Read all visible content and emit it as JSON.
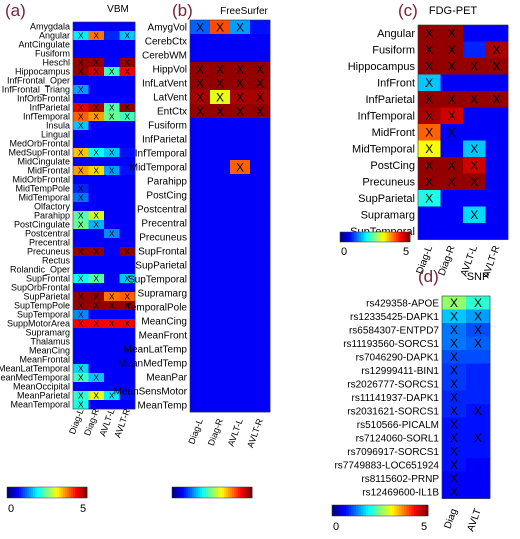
{
  "chart_data": [
    {
      "type": "heatmap",
      "panel_label": "(a)",
      "title": "VBM",
      "columns": [
        "Diag-L",
        "Diag-R",
        "AVLT-L",
        "AVLT-R"
      ],
      "rows": [
        "Amygdala",
        "Angular",
        "AntCingulate",
        "Fusiform",
        "Heschl",
        "Hippocampus",
        "InfFrontal_Oper",
        "InfFrontal_Triang",
        "InfOrbFrontal",
        "InfParietal",
        "InfTemporal",
        "Insula",
        "Lingual",
        "MedOrbFrontal",
        "MedSupFrontal",
        "MidCingulate",
        "MidFrontal",
        "MidOrbFrontal",
        "MidTempPole",
        "MidTemporal",
        "Olfactory",
        "Parahipp",
        "PostCingulate",
        "Postcentral",
        "Precentral",
        "Precuneus",
        "Rectus",
        "Rolandic_Oper",
        "SupFrontal",
        "SupOrbFrontal",
        "SupParietal",
        "SupTempPole",
        "SupTemporal",
        "SuppMotorArea",
        "Supramarg",
        "Thalamus",
        "MeanCing",
        "MeanFrontal",
        "MeanLatTemporal",
        "MeanMedTemporal",
        "MeanOccipital",
        "MeanParietal",
        "MeanTemporal"
      ],
      "values": [
        [
          0.6,
          0.6,
          0.6,
          0.6
        ],
        [
          1.8,
          3.8,
          0.8,
          1.6
        ],
        [
          0.6,
          0.6,
          0.6,
          0.6
        ],
        [
          0.6,
          0.6,
          0.6,
          0.6
        ],
        [
          4.9,
          4.9,
          0.6,
          4.9
        ],
        [
          4.9,
          4.6,
          2.2,
          4.4
        ],
        [
          0.6,
          0.6,
          0.6,
          0.6
        ],
        [
          1.4,
          0.6,
          0.6,
          0.6
        ],
        [
          0.6,
          0.6,
          0.6,
          0.6
        ],
        [
          4.5,
          4.8,
          2.3,
          4.9
        ],
        [
          3.9,
          3.6,
          2.4,
          2.2
        ],
        [
          1.6,
          0.6,
          0.6,
          0.6
        ],
        [
          0.6,
          0.6,
          0.6,
          0.6
        ],
        [
          0.6,
          0.6,
          0.6,
          0.6
        ],
        [
          3.4,
          1.9,
          1.6,
          0.7
        ],
        [
          0.6,
          0.6,
          0.6,
          0.6
        ],
        [
          3.6,
          3.3,
          1.4,
          0.7
        ],
        [
          0.6,
          0.6,
          0.6,
          0.6
        ],
        [
          0.8,
          0.6,
          0.6,
          0.6
        ],
        [
          1.2,
          0.6,
          0.6,
          0.6
        ],
        [
          0.6,
          0.6,
          0.6,
          0.6
        ],
        [
          2.3,
          2.9,
          0.6,
          0.6
        ],
        [
          2.4,
          1.5,
          0.6,
          0.6
        ],
        [
          0.6,
          0.6,
          1.3,
          0.6
        ],
        [
          0.6,
          0.6,
          0.6,
          0.6
        ],
        [
          4.9,
          4.9,
          0.6,
          4.9
        ],
        [
          0.6,
          0.6,
          0.6,
          0.6
        ],
        [
          0.6,
          0.6,
          0.6,
          0.6
        ],
        [
          1.9,
          2.3,
          0.6,
          1.6
        ],
        [
          0.6,
          0.6,
          0.6,
          0.6
        ],
        [
          4.9,
          4.9,
          3.8,
          3.9
        ],
        [
          4.9,
          4.9,
          4.9,
          4.9
        ],
        [
          1.3,
          0.6,
          0.6,
          0.6
        ],
        [
          4.4,
          4.4,
          4.4,
          4.4
        ],
        [
          0.6,
          0.6,
          0.6,
          0.6
        ],
        [
          0.6,
          0.6,
          0.6,
          0.6
        ],
        [
          0.6,
          0.6,
          0.6,
          0.6
        ],
        [
          0.6,
          0.6,
          0.6,
          0.6
        ],
        [
          1.7,
          0.6,
          0.6,
          0.6
        ],
        [
          2.2,
          1.6,
          0.6,
          0.6
        ],
        [
          0.6,
          0.6,
          0.6,
          0.6
        ],
        [
          2.1,
          3.0,
          1.8,
          0.7
        ],
        [
          2.0,
          0.6,
          0.6,
          0.6
        ]
      ],
      "marks": [
        [
          0,
          0,
          0,
          0
        ],
        [
          1,
          1,
          0,
          1
        ],
        [
          0,
          0,
          0,
          0
        ],
        [
          0,
          0,
          0,
          0
        ],
        [
          1,
          1,
          0,
          1
        ],
        [
          1,
          1,
          1,
          1
        ],
        [
          0,
          0,
          0,
          0
        ],
        [
          1,
          0,
          0,
          0
        ],
        [
          0,
          0,
          0,
          0
        ],
        [
          1,
          1,
          1,
          1
        ],
        [
          1,
          1,
          1,
          1
        ],
        [
          1,
          0,
          0,
          0
        ],
        [
          0,
          0,
          0,
          0
        ],
        [
          0,
          0,
          0,
          0
        ],
        [
          1,
          1,
          1,
          0
        ],
        [
          0,
          0,
          0,
          0
        ],
        [
          1,
          1,
          1,
          0
        ],
        [
          0,
          0,
          0,
          0
        ],
        [
          1,
          0,
          0,
          0
        ],
        [
          1,
          0,
          0,
          0
        ],
        [
          0,
          0,
          0,
          0
        ],
        [
          1,
          1,
          0,
          0
        ],
        [
          1,
          1,
          0,
          0
        ],
        [
          0,
          0,
          1,
          0
        ],
        [
          0,
          0,
          0,
          0
        ],
        [
          1,
          1,
          0,
          1
        ],
        [
          0,
          0,
          0,
          0
        ],
        [
          0,
          0,
          0,
          0
        ],
        [
          1,
          1,
          0,
          1
        ],
        [
          0,
          0,
          0,
          0
        ],
        [
          1,
          1,
          1,
          1
        ],
        [
          1,
          1,
          1,
          1
        ],
        [
          1,
          0,
          0,
          0
        ],
        [
          1,
          1,
          1,
          1
        ],
        [
          0,
          0,
          0,
          0
        ],
        [
          0,
          0,
          0,
          0
        ],
        [
          0,
          0,
          0,
          0
        ],
        [
          0,
          0,
          0,
          0
        ],
        [
          1,
          0,
          0,
          0
        ],
        [
          1,
          1,
          0,
          0
        ],
        [
          0,
          0,
          0,
          0
        ],
        [
          1,
          1,
          1,
          0
        ],
        [
          1,
          0,
          0,
          0
        ]
      ],
      "colorbar": {
        "colormap": "jet",
        "range": [
          0,
          5
        ],
        "tick_labels": [
          "0",
          "5"
        ]
      }
    },
    {
      "type": "heatmap",
      "panel_label": "(b)",
      "title": "FreeSurfer",
      "columns": [
        "Diag-L",
        "Diag-R",
        "AVLT-L",
        "AVLT-R"
      ],
      "rows": [
        "AmygVol",
        "CerebCtx",
        "CerebWM",
        "HippVol",
        "InfLatVent",
        "LatVent",
        "EntCtx",
        "Fusiform",
        "InfParietal",
        "InfTemporal",
        "MidTemporal",
        "Parahipp",
        "PostCing",
        "Postcentral",
        "Precentral",
        "Precuneus",
        "SupFrontal",
        "SupParietal",
        "SupTemporal",
        "Supramarg",
        "TemporalPole",
        "MeanCing",
        "MeanFront",
        "MeanLatTemp",
        "MeanMedTemp",
        "MeanPar",
        "MeanSensMotor",
        "MeanTemp"
      ],
      "values": [
        [
          1.1,
          4.0,
          1.4,
          0.7
        ],
        [
          0.6,
          0.6,
          0.6,
          0.6
        ],
        [
          0.6,
          0.6,
          0.6,
          0.6
        ],
        [
          4.9,
          4.9,
          4.9,
          4.9
        ],
        [
          4.9,
          4.9,
          4.9,
          4.9
        ],
        [
          4.8,
          3.0,
          4.8,
          4.8
        ],
        [
          4.9,
          4.9,
          4.9,
          4.9
        ],
        [
          0.6,
          0.6,
          0.6,
          0.6
        ],
        [
          0.6,
          0.6,
          0.6,
          0.6
        ],
        [
          0.6,
          0.6,
          0.6,
          0.6
        ],
        [
          0.6,
          0.6,
          3.9,
          0.6
        ],
        [
          0.6,
          0.6,
          0.6,
          0.6
        ],
        [
          0.6,
          0.6,
          0.6,
          0.6
        ],
        [
          0.6,
          0.6,
          0.6,
          0.6
        ],
        [
          0.6,
          0.6,
          0.6,
          0.6
        ],
        [
          0.6,
          0.6,
          0.6,
          0.6
        ],
        [
          0.6,
          0.6,
          0.6,
          0.6
        ],
        [
          0.6,
          0.6,
          0.6,
          0.6
        ],
        [
          0.6,
          0.6,
          0.6,
          0.6
        ],
        [
          0.6,
          0.6,
          0.6,
          0.6
        ],
        [
          0.6,
          0.6,
          0.6,
          0.6
        ],
        [
          0.6,
          0.6,
          0.6,
          0.6
        ],
        [
          0.6,
          0.6,
          0.6,
          0.6
        ],
        [
          0.6,
          0.6,
          0.6,
          0.6
        ],
        [
          0.6,
          0.6,
          0.6,
          0.6
        ],
        [
          0.6,
          0.6,
          0.6,
          0.6
        ],
        [
          0.6,
          0.6,
          0.6,
          0.6
        ],
        [
          0.6,
          0.6,
          0.6,
          0.6
        ]
      ],
      "marks": [
        [
          1,
          1,
          1,
          0
        ],
        [
          0,
          0,
          0,
          0
        ],
        [
          0,
          0,
          0,
          0
        ],
        [
          1,
          1,
          1,
          1
        ],
        [
          1,
          1,
          1,
          1
        ],
        [
          1,
          1,
          1,
          1
        ],
        [
          1,
          1,
          1,
          1
        ],
        [
          0,
          0,
          0,
          0
        ],
        [
          0,
          0,
          0,
          0
        ],
        [
          0,
          0,
          0,
          0
        ],
        [
          0,
          0,
          1,
          0
        ],
        [
          0,
          0,
          0,
          0
        ],
        [
          0,
          0,
          0,
          0
        ],
        [
          0,
          0,
          0,
          0
        ],
        [
          0,
          0,
          0,
          0
        ],
        [
          0,
          0,
          0,
          0
        ],
        [
          0,
          0,
          0,
          0
        ],
        [
          0,
          0,
          0,
          0
        ],
        [
          0,
          0,
          0,
          0
        ],
        [
          0,
          0,
          0,
          0
        ],
        [
          0,
          0,
          0,
          0
        ],
        [
          0,
          0,
          0,
          0
        ],
        [
          0,
          0,
          0,
          0
        ],
        [
          0,
          0,
          0,
          0
        ],
        [
          0,
          0,
          0,
          0
        ],
        [
          0,
          0,
          0,
          0
        ],
        [
          0,
          0,
          0,
          0
        ],
        [
          0,
          0,
          0,
          0
        ]
      ],
      "colorbar": {
        "colormap": "jet",
        "range": [
          0,
          5
        ],
        "tick_labels": []
      }
    },
    {
      "type": "heatmap",
      "panel_label": "(c)",
      "title": "FDG-PET",
      "columns": [
        "Diag-L",
        "Diag-R",
        "AVLT-L",
        "AVLT-R"
      ],
      "rows": [
        "Angular",
        "Fusiform",
        "Hippocampus",
        "InfFront",
        "InfParietal",
        "InfTemporal",
        "MidFront",
        "MidTemporal",
        "PostCing",
        "Precuneus",
        "SupParietal",
        "Supramarg",
        "SupTemporal"
      ],
      "values": [
        [
          4.9,
          4.9,
          0.6,
          0.6
        ],
        [
          4.9,
          4.9,
          0.8,
          4.8
        ],
        [
          4.9,
          4.9,
          4.9,
          4.9
        ],
        [
          1.6,
          0.6,
          0.6,
          0.6
        ],
        [
          4.9,
          4.9,
          4.9,
          4.9
        ],
        [
          4.8,
          4.6,
          0.6,
          0.6
        ],
        [
          3.9,
          0.6,
          0.6,
          0.6
        ],
        [
          3.1,
          0.6,
          1.6,
          0.6
        ],
        [
          4.9,
          4.9,
          4.6,
          0.6
        ],
        [
          4.9,
          4.9,
          4.9,
          0.6
        ],
        [
          2.0,
          0.6,
          0.6,
          0.6
        ],
        [
          0.6,
          0.6,
          1.7,
          0.6
        ],
        [
          0.6,
          0.6,
          0.6,
          0.6
        ]
      ],
      "marks": [
        [
          1,
          1,
          0,
          0
        ],
        [
          1,
          1,
          0,
          1
        ],
        [
          1,
          1,
          1,
          1
        ],
        [
          1,
          0,
          0,
          0
        ],
        [
          1,
          1,
          1,
          1
        ],
        [
          1,
          1,
          0,
          0
        ],
        [
          1,
          1,
          0,
          0
        ],
        [
          1,
          0,
          1,
          0
        ],
        [
          1,
          1,
          1,
          0
        ],
        [
          1,
          1,
          1,
          0
        ],
        [
          1,
          0,
          0,
          0
        ],
        [
          0,
          0,
          1,
          0
        ],
        [
          0,
          0,
          0,
          0
        ]
      ],
      "colorbar": {
        "colormap": "jet",
        "range": [
          0,
          5
        ],
        "tick_labels": [
          "0",
          "5"
        ]
      }
    },
    {
      "type": "heatmap",
      "panel_label": "(d)",
      "title": "SNP",
      "columns": [
        "Diag",
        "AVLT"
      ],
      "rows": [
        "rs429358-APOE",
        "rs12335425-DAPK1",
        "rs6584307-ENTPD7",
        "rs11193560-SORCS1",
        "rs7046290-DAPK1",
        "rs12999411-BIN1",
        "rs2026777-SORCS1",
        "rs11141937-DAPK1",
        "rs2031621-SORCS1",
        "rs510566-PICALM",
        "rs7124060-SORL1",
        "rs7096917-SORCS1",
        "rs7749883-LOC651924",
        "rs8115602-PRNP",
        "rs12469600-IL1B"
      ],
      "values": [
        [
          2.6,
          2.1
        ],
        [
          1.6,
          1.4
        ],
        [
          1.2,
          1.0
        ],
        [
          1.2,
          1.1
        ],
        [
          1.0,
          1.0
        ],
        [
          0.9,
          0.8
        ],
        [
          0.9,
          0.8
        ],
        [
          0.8,
          0.8
        ],
        [
          0.8,
          0.7
        ],
        [
          0.7,
          0.7
        ],
        [
          0.7,
          0.7
        ],
        [
          0.7,
          0.7
        ],
        [
          0.7,
          0.6
        ],
        [
          0.6,
          0.6
        ],
        [
          0.6,
          0.6
        ]
      ],
      "marks": [
        [
          1,
          1
        ],
        [
          1,
          1
        ],
        [
          1,
          1
        ],
        [
          1,
          1
        ],
        [
          1,
          0
        ],
        [
          1,
          0
        ],
        [
          1,
          0
        ],
        [
          1,
          0
        ],
        [
          1,
          1
        ],
        [
          1,
          0
        ],
        [
          1,
          1
        ],
        [
          1,
          0
        ],
        [
          1,
          0
        ],
        [
          1,
          0
        ],
        [
          1,
          0
        ]
      ],
      "colorbar": {
        "colormap": "jet",
        "range": [
          0,
          5
        ],
        "tick_labels": [
          "0",
          "5"
        ]
      }
    }
  ],
  "panel_label_color": "#7a1f3a"
}
